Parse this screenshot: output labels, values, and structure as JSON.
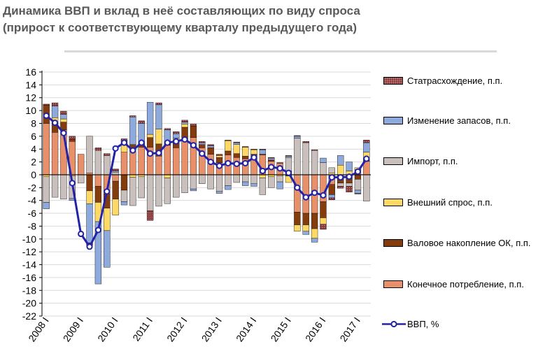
{
  "title_line1": "Динамика ВВП и вклад в неё составляющих по виду спроса",
  "title_line2": "(прирост к соответствующему кварталу предыдущего года)",
  "colors": {
    "discrepancy": "#8b3a3a",
    "inventories": "#8ea9db",
    "imports": "#c9c0bd",
    "external_demand": "#ffd966",
    "gross_capital": "#843c0c",
    "final_consumption": "#e8906a",
    "gdp_line": "#2323a8"
  },
  "chart_data": {
    "type": "bar",
    "stacked": true,
    "x_tick_labels": [
      "2008 I",
      "2009 I",
      "2010 I",
      "2011 I",
      "2012 I",
      "2013 I",
      "2014 I",
      "2015 I",
      "2016 I",
      "2017 I"
    ],
    "quarters_count": 38,
    "ylim": [
      -22,
      16
    ],
    "yticks": [
      16,
      14,
      12,
      10,
      8,
      6,
      4,
      2,
      0,
      -2,
      -4,
      -6,
      -8,
      -10,
      -12,
      -14,
      -16,
      -18,
      -20,
      -22
    ],
    "grid": true,
    "legend_position": "right",
    "series": [
      {
        "name": "Статрасхождение, п.п.",
        "key": "discrepancy",
        "values": [
          0.2,
          0.5,
          0.5,
          0.5,
          0,
          -0.4,
          0.4,
          0.3,
          0.3,
          0.3,
          0.2,
          0.4,
          -1.5,
          0.3,
          0.2,
          0.3,
          0.3,
          0.3,
          0.2,
          0.2,
          0.2,
          0.1,
          0.1,
          0.1,
          0.1,
          0.1,
          0.1,
          0.1,
          0.1,
          0.1,
          0.2,
          0.1,
          -0.8,
          -0.3,
          -0.3,
          -0.9,
          -0.1,
          0.4
        ]
      },
      {
        "name": "Изменение запасов, п.п.",
        "key": "inventories",
        "values": [
          -1,
          1.8,
          0.7,
          -0.3,
          0,
          -6.1,
          -9.7,
          -5.7,
          0.2,
          -0.5,
          4.3,
          3.2,
          5,
          3.8,
          1.9,
          0.7,
          0.3,
          -0.3,
          0.3,
          0.3,
          -0.3,
          -0.6,
          0.3,
          -0.6,
          -0.4,
          0.7,
          0.3,
          -1.1,
          0.2,
          0.3,
          -0.5,
          -0.6,
          0.7,
          -0.5,
          1.5,
          1.4,
          -0.5,
          1.5
        ]
      },
      {
        "name": "Импорт, п.п.",
        "key": "imports",
        "values": [
          -4,
          -3.5,
          -3.8,
          -3.5,
          -1.3,
          5.7,
          3.8,
          3,
          0.4,
          -1.8,
          -4.4,
          -3.3,
          -5.6,
          -4.9,
          -4,
          -3.5,
          -2.8,
          -2.2,
          -1.4,
          -2.2,
          -2.6,
          -1.7,
          -1.2,
          -1.1,
          -1.4,
          -2.6,
          -1.7,
          -0.9,
          2.1,
          5.7,
          5,
          3.8,
          1.9,
          0.8,
          -0.5,
          -0.5,
          -1.7,
          -4.1
        ]
      },
      {
        "name": "Внешний спрос, п.п.",
        "key": "external_demand",
        "values": [
          -0.3,
          0.8,
          0.5,
          -0.2,
          0,
          -2,
          -3,
          -3.5,
          -2.5,
          1.8,
          -0.4,
          -0.3,
          0.5,
          2.3,
          -0.5,
          0.8,
          0.5,
          0,
          0,
          0,
          0.3,
          1.6,
          1.4,
          1.4,
          0.7,
          -0.5,
          -0.3,
          -0.2,
          -1,
          -1,
          -1,
          -1.5,
          -1,
          0.3,
          1.5,
          0.6,
          0.3,
          1.2
        ]
      },
      {
        "name": "Валовое накопление ОК, п.п.",
        "key": "gross_capital",
        "values": [
          2.8,
          1.5,
          1.2,
          0.3,
          0,
          -2.5,
          -2.5,
          -2.2,
          -2.8,
          -2.4,
          0.5,
          0.5,
          1.5,
          1.9,
          0.5,
          0.7,
          1.8,
          1.8,
          0.5,
          1,
          0.8,
          0.6,
          0.6,
          0.4,
          0.7,
          0.1,
          0.2,
          0,
          -0.2,
          -2,
          -1.8,
          -2.4,
          -2.5,
          -1.6,
          -1,
          -0.8,
          -0.7,
          0.2
        ]
      },
      {
        "name": "Конечное потребление, п.п.",
        "key": "final_consumption",
        "values": [
          8,
          6.6,
          7,
          5.2,
          3.2,
          0.3,
          -1.8,
          -3,
          -1,
          3.5,
          4.2,
          4.3,
          4.3,
          2.9,
          4.6,
          4.2,
          5.6,
          5.8,
          4.2,
          3.2,
          1.9,
          3.1,
          2.7,
          2.5,
          2.5,
          3.1,
          2.1,
          1.8,
          0.6,
          -5.8,
          -6,
          -6,
          -4.2,
          -1.5,
          -0.3,
          -0.5,
          0.8,
          2.1
        ]
      }
    ],
    "line_series": {
      "name": "ВВП, %",
      "key": "gdp",
      "values": [
        9.2,
        8.1,
        6.5,
        -1.3,
        -9.2,
        -11.2,
        -8.6,
        -2.6,
        4.1,
        5,
        3.8,
        5,
        3.3,
        3.4,
        5,
        5.2,
        5.5,
        4.6,
        3.3,
        2,
        1.4,
        1.8,
        1.7,
        1.8,
        2.7,
        0.6,
        1.2,
        1,
        0.3,
        -2,
        -3.5,
        -2.8,
        -3.2,
        -0.4,
        -0.4,
        -0.3,
        0.5,
        2.5
      ]
    }
  }
}
